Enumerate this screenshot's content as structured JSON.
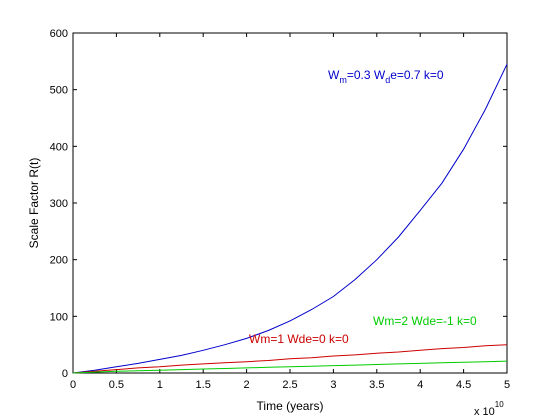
{
  "chart_data": {
    "type": "line",
    "xlabel": "Time (years)",
    "ylabel": "Scale Factor R(t)",
    "x_exponent_label": {
      "base": "x 10",
      "exp": "10"
    },
    "xlim": [
      0,
      5
    ],
    "ylim": [
      0,
      600
    ],
    "x_ticks": [
      0,
      0.5,
      1,
      1.5,
      2,
      2.5,
      3,
      3.5,
      4,
      4.5,
      5
    ],
    "x_tick_labels": [
      "0",
      "0.5",
      "1",
      "1.5",
      "2",
      "2.5",
      "3",
      "3.5",
      "4",
      "4.5",
      "5"
    ],
    "y_ticks": [
      0,
      100,
      200,
      300,
      400,
      500,
      600
    ],
    "y_tick_labels": [
      "0",
      "100",
      "200",
      "300",
      "400",
      "500",
      "600"
    ],
    "grid": false,
    "series": [
      {
        "name": "Wm=0.3 Wde=0.7 k=0",
        "color": "#0000cc",
        "x": [
          0,
          0.25,
          0.5,
          0.75,
          1,
          1.25,
          1.5,
          1.75,
          2,
          2.25,
          2.5,
          2.75,
          3,
          3.25,
          3.5,
          3.75,
          4,
          4.25,
          4.5,
          4.75,
          5
        ],
        "y": [
          0,
          5,
          11,
          17,
          24,
          31,
          40,
          50,
          61,
          75,
          92,
          112,
          135,
          165,
          200,
          240,
          287,
          335,
          395,
          465,
          545
        ]
      },
      {
        "name": "Wm=1 Wde=0 k=0",
        "color": "#cc0000",
        "x": [
          0,
          0.25,
          0.5,
          0.75,
          1,
          1.25,
          1.5,
          1.75,
          2,
          2.25,
          2.5,
          2.75,
          3,
          3.25,
          3.5,
          3.75,
          4,
          4.25,
          4.5,
          4.75,
          5
        ],
        "y": [
          0,
          3,
          6,
          9,
          11,
          14,
          16,
          18,
          20,
          22,
          25,
          27,
          30,
          32,
          35,
          37,
          40,
          43,
          45,
          48,
          50
        ]
      },
      {
        "name": "Wm=2 Wde=-1 k=0",
        "color": "#00cc00",
        "x": [
          0,
          0.25,
          0.5,
          0.75,
          1,
          1.25,
          1.5,
          1.75,
          2,
          2.25,
          2.5,
          2.75,
          3,
          3.25,
          3.5,
          3.75,
          4,
          4.25,
          4.5,
          4.75,
          5
        ],
        "y": [
          0,
          1.5,
          3,
          4,
          5,
          6,
          7,
          8,
          9,
          10,
          11,
          12,
          13,
          14,
          15,
          16,
          17,
          18,
          19,
          20,
          21
        ]
      }
    ],
    "annotations": [
      {
        "series": 0,
        "main": "W",
        "sub1": "m",
        "mid": "=0.3 W",
        "sub2": "d",
        "tail": "e=0.7 k=0",
        "color": "#0000cc"
      },
      {
        "series": 1,
        "text": "Wm=1 Wde=0 k=0",
        "color": "#cc0000"
      },
      {
        "series": 2,
        "text": "Wm=2 Wde=-1 k=0",
        "color": "#00cc00"
      }
    ]
  }
}
